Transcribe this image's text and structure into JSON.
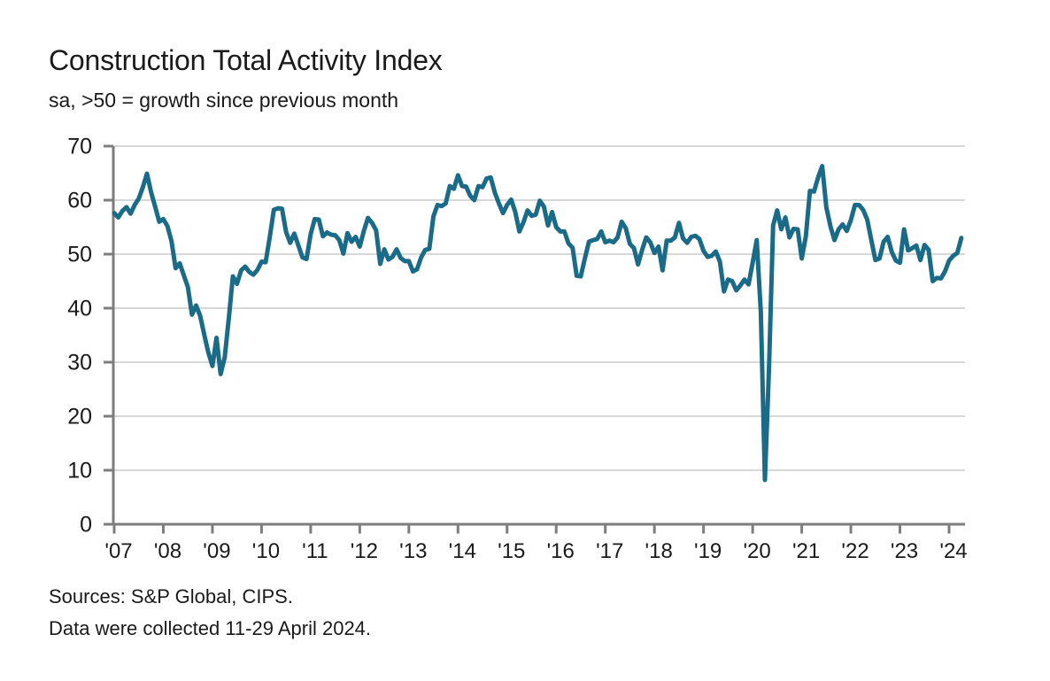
{
  "header": {
    "title": "Construction Total Activity Index",
    "subtitle": "sa, >50 = growth since previous month"
  },
  "footer": {
    "sources": "Sources: S&P Global, CIPS.",
    "note": "Data were collected 11-29 April 2024."
  },
  "chart_data": {
    "type": "line",
    "title": "Construction Total Activity Index",
    "subtitle": "sa, >50 = growth since previous month",
    "series_name": "Construction Total Activity Index (seasonally adjusted)",
    "frequency": "monthly",
    "x_start": "2007-01",
    "x_end": "2024-04",
    "x_tick_labels": [
      "'07",
      "'08",
      "'09",
      "'10",
      "'11",
      "'12",
      "'13",
      "'14",
      "'15",
      "'16",
      "'17",
      "'18",
      "'19",
      "'20",
      "'21",
      "'22",
      "'23",
      "'24"
    ],
    "ylim": [
      0,
      70
    ],
    "y_ticks": [
      0,
      10,
      20,
      30,
      40,
      50,
      60,
      70
    ],
    "grid": true,
    "legend": "none",
    "colors": {
      "line": "#1a6b87",
      "grid": "#d8d8d8",
      "axis": "#7d7d7d",
      "text": "#1a1a1a"
    },
    "values_by_year": {
      "2007": [
        57.6,
        56.8,
        58.0,
        58.7,
        57.5,
        59.1,
        60.3,
        62.4,
        64.9,
        61.5,
        58.8,
        56.0
      ],
      "2008": [
        56.5,
        55.2,
        52.4,
        47.4,
        48.3,
        46.1,
        43.9,
        38.8,
        40.5,
        38.6,
        35.1,
        31.8
      ],
      "2009": [
        29.3,
        34.5,
        27.8,
        30.9,
        38.1,
        45.9,
        44.5,
        47.0,
        47.7,
        46.7,
        46.2,
        47.1
      ],
      "2010": [
        48.6,
        48.5,
        53.1,
        58.2,
        58.5,
        58.4,
        54.1,
        52.1,
        53.8,
        51.6,
        49.4,
        49.1
      ],
      "2011": [
        53.7,
        56.5,
        56.4,
        53.3,
        54.0,
        53.6,
        53.5,
        52.6,
        50.1,
        53.9,
        52.3,
        53.2
      ],
      "2012": [
        51.4,
        54.3,
        56.7,
        55.8,
        54.4,
        48.2,
        50.9,
        49.0,
        49.5,
        50.9,
        49.3,
        48.7
      ],
      "2013": [
        48.7,
        46.8,
        47.2,
        49.4,
        50.8,
        51.0,
        57.0,
        59.1,
        58.9,
        59.4,
        62.6,
        62.1
      ],
      "2014": [
        64.6,
        62.6,
        62.5,
        60.8,
        60.0,
        62.6,
        62.4,
        64.0,
        64.2,
        61.4,
        59.4,
        57.6
      ],
      "2015": [
        59.1,
        60.1,
        57.8,
        54.2,
        55.9,
        58.1,
        57.1,
        57.3,
        59.9,
        58.8,
        55.3,
        57.8
      ],
      "2016": [
        55.0,
        54.2,
        54.2,
        52.0,
        51.2,
        46.0,
        45.9,
        49.2,
        52.3,
        52.6,
        52.8,
        54.2
      ],
      "2017": [
        52.2,
        52.5,
        52.2,
        53.1,
        56.0,
        54.8,
        51.9,
        51.1,
        48.1,
        50.8,
        53.1,
        52.2
      ],
      "2018": [
        50.2,
        51.4,
        47.0,
        52.5,
        52.5,
        53.1,
        55.8,
        52.9,
        52.1,
        53.2,
        53.4,
        52.8
      ],
      "2019": [
        50.6,
        49.5,
        49.7,
        50.5,
        48.6,
        43.1,
        45.3,
        45.0,
        43.3,
        44.2,
        45.3,
        44.4
      ],
      "2020": [
        48.4,
        52.6,
        39.3,
        8.2,
        28.9,
        55.3,
        58.1,
        54.6,
        56.8,
        53.1,
        54.7,
        54.6
      ],
      "2021": [
        49.2,
        53.3,
        61.7,
        61.6,
        64.2,
        66.3,
        58.7,
        55.2,
        52.6,
        54.6,
        55.5,
        54.3
      ],
      "2022": [
        56.3,
        59.1,
        59.1,
        58.2,
        56.4,
        52.6,
        48.9,
        49.2,
        52.3,
        53.2,
        50.4,
        48.8
      ],
      "2023": [
        48.4,
        54.6,
        50.7,
        51.1,
        51.6,
        48.9,
        51.7,
        50.8,
        45.0,
        45.6,
        45.5,
        46.8
      ],
      "2024": [
        48.8,
        49.7,
        50.2,
        53.0
      ]
    }
  }
}
